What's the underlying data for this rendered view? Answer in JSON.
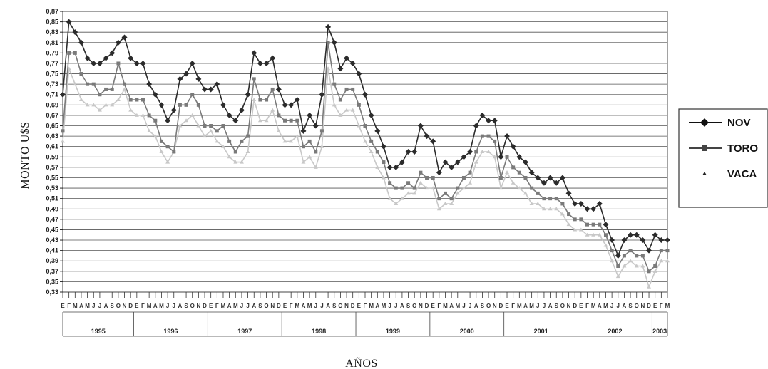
{
  "chart_data": {
    "type": "line",
    "xlabel": "AÑOS",
    "ylabel": "MONTO U$S",
    "ylim": [
      0.33,
      0.87
    ],
    "y_ticks": [
      "0,87",
      "0,85",
      "0,83",
      "0,81",
      "0,79",
      "0,77",
      "0,75",
      "0,73",
      "0,71",
      "0,69",
      "0,67",
      "0,65",
      "0,63",
      "0,61",
      "0,59",
      "0,57",
      "0,55",
      "0,53",
      "0,51",
      "0,49",
      "0,47",
      "0,45",
      "0,43",
      "0,41",
      "0,39",
      "0,37",
      "0,35",
      "0,33"
    ],
    "grid": true,
    "legend_position": "right",
    "years": [
      "1995",
      "1996",
      "1997",
      "1998",
      "1999",
      "2000",
      "2001",
      "2002",
      "2003"
    ],
    "month_labels": "EFMAMJJASONDEFMAMJJASONDEFMAMJJASONDEFMAMJJASONDEFMAMJJASONDEFMAMJJASONDEFMAMJJASONDEFMAMJJASONDEFM",
    "series": [
      {
        "name": "NOV",
        "color": "#2b2b2b",
        "marker": "diamond",
        "values": [
          0.71,
          0.85,
          0.83,
          0.81,
          0.78,
          0.77,
          0.77,
          0.78,
          0.79,
          0.81,
          0.82,
          0.78,
          0.77,
          0.77,
          0.73,
          0.71,
          0.69,
          0.66,
          0.68,
          0.74,
          0.75,
          0.77,
          0.74,
          0.72,
          0.72,
          0.73,
          0.69,
          0.67,
          0.66,
          0.68,
          0.71,
          0.79,
          0.77,
          0.77,
          0.78,
          0.72,
          0.69,
          0.69,
          0.7,
          0.64,
          0.67,
          0.65,
          0.71,
          0.84,
          0.81,
          0.76,
          0.78,
          0.77,
          0.75,
          0.71,
          0.67,
          0.64,
          0.61,
          0.57,
          0.57,
          0.58,
          0.6,
          0.6,
          0.65,
          0.63,
          0.62,
          0.56,
          0.58,
          0.57,
          0.58,
          0.59,
          0.6,
          0.65,
          0.67,
          0.66,
          0.66,
          0.59,
          0.63,
          0.61,
          0.59,
          0.58,
          0.56,
          0.55,
          0.54,
          0.55,
          0.54,
          0.55,
          0.52,
          0.5,
          0.5,
          0.49,
          0.49,
          0.5,
          0.46,
          0.43,
          0.4,
          0.43,
          0.44,
          0.44,
          0.43,
          0.41,
          0.44,
          0.43,
          0.43
        ]
      },
      {
        "name": "TORO",
        "color": "#7a7a7a",
        "marker": "square",
        "values": [
          0.64,
          0.79,
          0.79,
          0.75,
          0.73,
          0.73,
          0.71,
          0.72,
          0.72,
          0.77,
          0.73,
          0.7,
          0.7,
          0.7,
          0.67,
          0.66,
          0.62,
          0.61,
          0.6,
          0.69,
          0.69,
          0.71,
          0.69,
          0.65,
          0.65,
          0.64,
          0.65,
          0.62,
          0.6,
          0.62,
          0.63,
          0.74,
          0.7,
          0.7,
          0.72,
          0.67,
          0.66,
          0.66,
          0.66,
          0.61,
          0.62,
          0.6,
          0.64,
          0.81,
          0.73,
          0.7,
          0.72,
          0.72,
          0.69,
          0.65,
          0.62,
          0.6,
          0.58,
          0.54,
          0.53,
          0.53,
          0.54,
          0.53,
          0.56,
          0.55,
          0.55,
          0.51,
          0.52,
          0.51,
          0.53,
          0.55,
          0.56,
          0.6,
          0.63,
          0.63,
          0.62,
          0.55,
          0.59,
          0.57,
          0.56,
          0.55,
          0.53,
          0.52,
          0.51,
          0.51,
          0.51,
          0.5,
          0.48,
          0.47,
          0.47,
          0.46,
          0.46,
          0.46,
          0.44,
          0.41,
          0.38,
          0.4,
          0.41,
          0.4,
          0.4,
          0.37,
          0.38,
          0.41,
          0.41
        ]
      },
      {
        "name": "VACA",
        "color": "#c8c8c8",
        "marker": "triangle",
        "values": [
          0.62,
          0.76,
          0.73,
          0.7,
          0.69,
          0.69,
          0.68,
          0.69,
          0.69,
          0.7,
          0.72,
          0.68,
          0.67,
          0.67,
          0.64,
          0.63,
          0.6,
          0.58,
          0.6,
          0.65,
          0.66,
          0.67,
          0.65,
          0.63,
          0.64,
          0.62,
          0.61,
          0.59,
          0.58,
          0.58,
          0.6,
          0.7,
          0.66,
          0.66,
          0.68,
          0.64,
          0.62,
          0.62,
          0.63,
          0.58,
          0.59,
          0.57,
          0.61,
          0.76,
          0.69,
          0.67,
          0.68,
          0.68,
          0.65,
          0.62,
          0.6,
          0.57,
          0.55,
          0.51,
          0.5,
          0.51,
          0.52,
          0.52,
          0.54,
          0.53,
          0.53,
          0.49,
          0.5,
          0.5,
          0.52,
          0.53,
          0.54,
          0.58,
          0.6,
          0.6,
          0.59,
          0.53,
          0.56,
          0.54,
          0.53,
          0.52,
          0.5,
          0.5,
          0.49,
          0.49,
          0.49,
          0.48,
          0.46,
          0.45,
          0.45,
          0.44,
          0.44,
          0.44,
          0.42,
          0.39,
          0.36,
          0.38,
          0.39,
          0.38,
          0.38,
          0.34,
          0.37,
          0.39,
          0.39
        ]
      }
    ]
  }
}
